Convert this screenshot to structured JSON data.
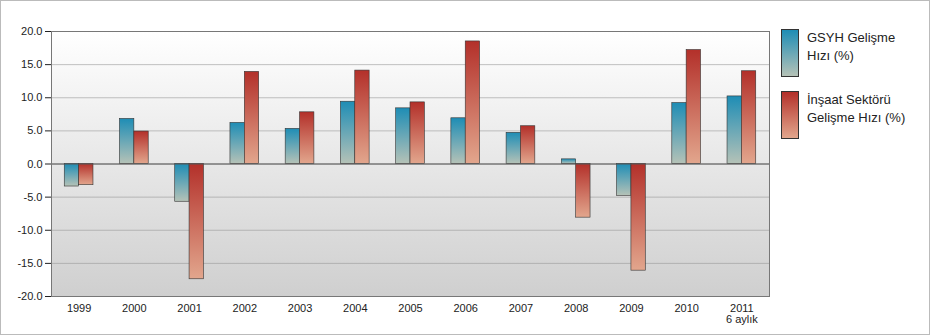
{
  "chart_data": {
    "type": "bar",
    "categories": [
      "1999",
      "2000",
      "2001",
      "2002",
      "2003",
      "2004",
      "2005",
      "2006",
      "2007",
      "2008",
      "2009",
      "2010",
      "2011\n6 aylık"
    ],
    "series": [
      {
        "name": "GSYH Gelişme Hızı (%)",
        "color": "#1e8db5",
        "values": [
          -3.4,
          6.8,
          -5.7,
          6.2,
          5.3,
          9.4,
          8.4,
          6.9,
          4.7,
          0.7,
          -4.8,
          9.2,
          10.2
        ]
      },
      {
        "name": "İnşaat Sektörü Gelişme Hızı (%)",
        "color": "#b3302a",
        "values": [
          -3.2,
          4.9,
          -17.4,
          13.9,
          7.8,
          14.1,
          9.3,
          18.5,
          5.7,
          -8.1,
          -16.1,
          17.2,
          14.0
        ]
      }
    ],
    "ylim": [
      -20,
      20
    ],
    "yticks": [
      {
        "value": -20,
        "label": "-20.0"
      },
      {
        "value": -15,
        "label": "-15.0"
      },
      {
        "value": -10,
        "label": "-10.0"
      },
      {
        "value": -5,
        "label": "-5.0"
      },
      {
        "value": 0,
        "label": "0.0"
      },
      {
        "value": 5,
        "label": "5.0"
      },
      {
        "value": 10,
        "label": "10.0"
      },
      {
        "value": 15,
        "label": "15.0"
      },
      {
        "value": 20,
        "label": "20.0"
      }
    ],
    "grid": true,
    "legend": "right"
  }
}
